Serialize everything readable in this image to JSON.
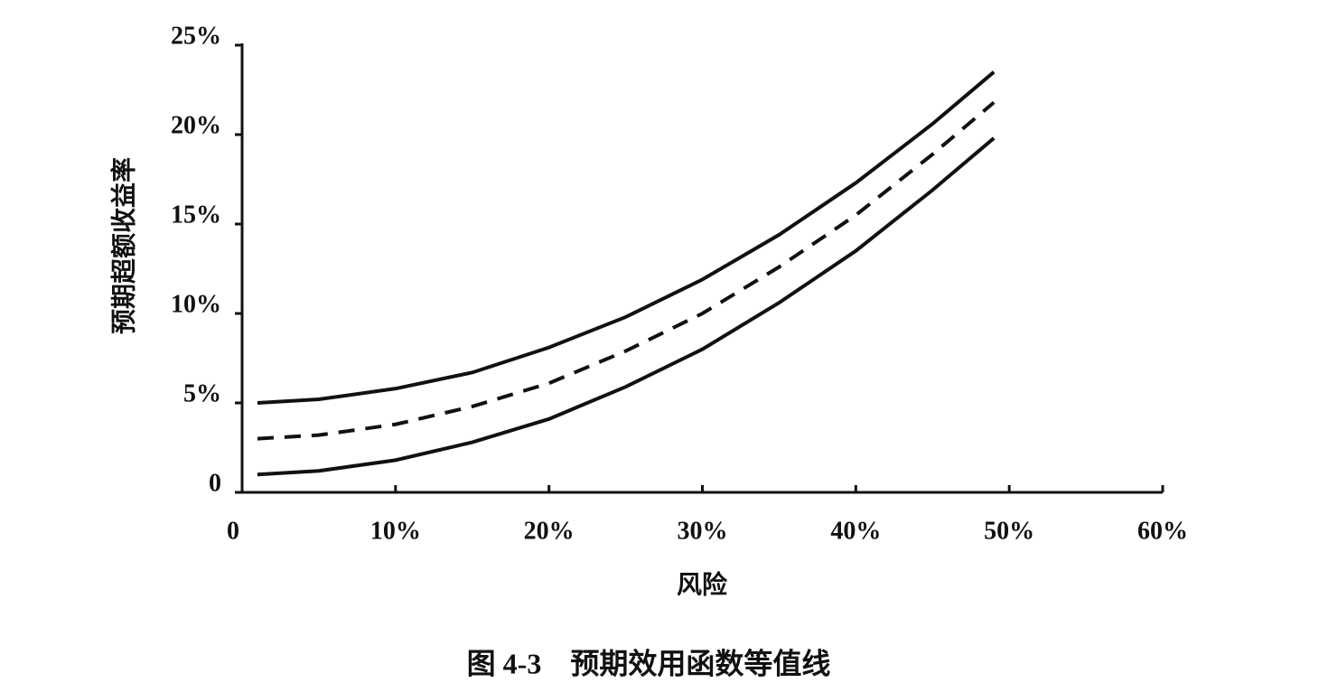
{
  "chart_data": {
    "type": "line",
    "caption": "图 4-3　预期效用函数等值线",
    "x_label": "风险",
    "y_label": "预期超额收益率",
    "x": [
      1,
      5,
      10,
      15,
      20,
      25,
      30,
      35,
      40,
      45,
      49
    ],
    "series": [
      {
        "color": "#111111",
        "dashed": false,
        "values": [
          5.0,
          5.2,
          5.8,
          6.7,
          8.1,
          9.8,
          11.9,
          14.4,
          17.3,
          20.6,
          23.5
        ]
      },
      {
        "color": "#111111",
        "dashed": true,
        "values": [
          3.0,
          3.2,
          3.8,
          4.8,
          6.1,
          7.9,
          10.0,
          12.6,
          15.5,
          18.9,
          21.8
        ]
      },
      {
        "color": "#111111",
        "dashed": false,
        "values": [
          1.0,
          1.2,
          1.8,
          2.8,
          4.1,
          5.9,
          8.0,
          10.6,
          13.5,
          16.9,
          19.8
        ]
      }
    ],
    "xlim": [
      0,
      60
    ],
    "xticks": [
      0,
      {
        "value": 10,
        "label": "10%"
      },
      {
        "value": 20,
        "label": "20%"
      },
      {
        "value": 30,
        "label": "30%"
      },
      {
        "value": 40,
        "label": "40%"
      },
      {
        "value": 50,
        "label": "50%"
      },
      {
        "value": 60,
        "label": "60%"
      }
    ],
    "ylim": [
      0,
      25
    ],
    "yticks": [
      0,
      {
        "value": 5,
        "label": "5%"
      },
      {
        "value": 10,
        "label": "10%"
      },
      {
        "value": 15,
        "label": "15%"
      },
      {
        "value": 20,
        "label": "20%"
      },
      {
        "value": 25,
        "label": "25%"
      }
    ],
    "grid": false
  }
}
